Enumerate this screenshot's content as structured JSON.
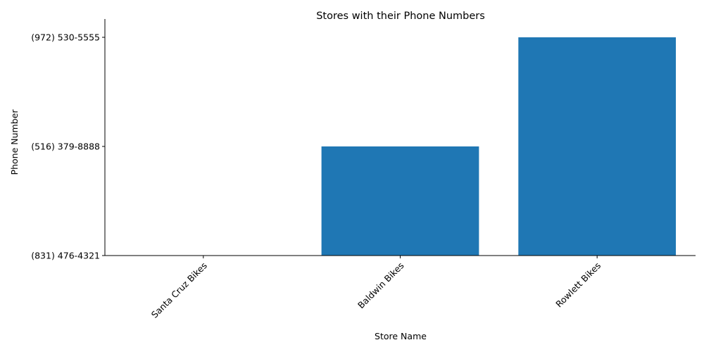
{
  "chart_data": {
    "type": "bar",
    "title": "Stores with their Phone Numbers",
    "xlabel": "Store Name",
    "ylabel": "Phone Number",
    "categories": [
      "Santa Cruz Bikes",
      "Baldwin Bikes",
      "Rowlett Bikes"
    ],
    "values": [
      "(831) 476-4321",
      "(516) 379-8888",
      "(972) 530-5555"
    ],
    "y_ticks": [
      "(831) 476-4321",
      "(516) 379-8888",
      "(972) 530-5555"
    ],
    "bar_color": "#1f77b4",
    "grid": false,
    "legend": "none"
  }
}
